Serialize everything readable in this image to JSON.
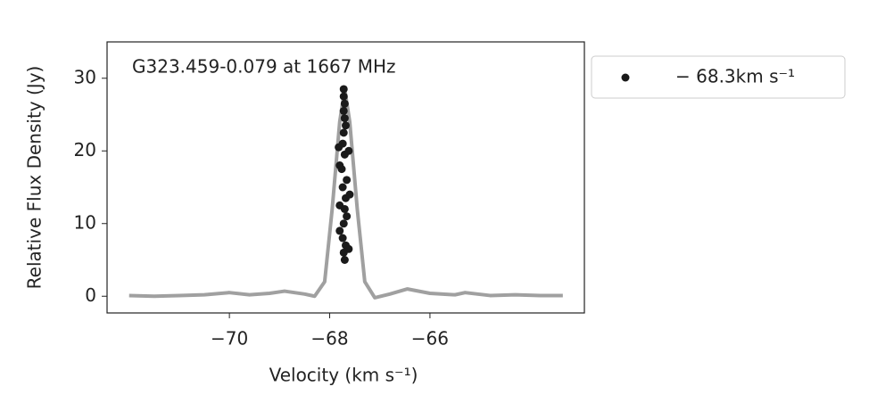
{
  "chart_data": {
    "type": "line",
    "annotation": "G323.459-0.079 at 1667 MHz",
    "xlabel": "Velocity (km s⁻¹)",
    "ylabel": "Relative Flux Density (Jy)",
    "xlim": [
      -72.44,
      -62.92
    ],
    "ylim": [
      -2.3,
      35
    ],
    "xticks": [
      {
        "value": -70,
        "label": "−70"
      },
      {
        "value": -68,
        "label": "−68"
      },
      {
        "value": -66,
        "label": "−66"
      }
    ],
    "yticks": [
      0,
      10,
      20,
      30
    ],
    "spectrum": {
      "color": "#888888",
      "x": [
        -72.0,
        -71.5,
        -71.0,
        -70.5,
        -70.0,
        -69.6,
        -69.2,
        -68.9,
        -68.5,
        -68.3,
        -68.1,
        -67.95,
        -67.8,
        -67.7,
        -67.6,
        -67.45,
        -67.3,
        -67.1,
        -66.8,
        -66.45,
        -66.0,
        -65.5,
        -65.3,
        -64.8,
        -64.3,
        -63.8,
        -63.35
      ],
      "values": [
        0.1,
        0.0,
        0.1,
        0.2,
        0.5,
        0.2,
        0.4,
        0.7,
        0.3,
        0.0,
        2,
        12,
        24,
        28.5,
        24,
        12,
        2,
        -0.2,
        0.3,
        1.0,
        0.4,
        0.2,
        0.5,
        0.1,
        0.2,
        0.1,
        0.1
      ]
    },
    "points": {
      "name": "− 68.3km s⁻¹",
      "color": "#1a1a1a",
      "x": [
        -67.72,
        -67.72,
        -67.7,
        -67.72,
        -67.7,
        -67.68,
        -67.72,
        -67.74,
        -67.82,
        -67.62,
        -67.7,
        -67.8,
        -67.76,
        -67.66,
        -67.74,
        -67.6,
        -67.68,
        -67.8,
        -67.7,
        -67.66,
        -67.72,
        -67.8,
        -67.74,
        -67.68,
        -67.62,
        -67.72,
        -67.7
      ],
      "values": [
        28.5,
        27.5,
        26.5,
        25.5,
        24.5,
        23.5,
        22.5,
        21,
        20.5,
        20,
        19.5,
        18,
        17.5,
        16,
        15,
        14,
        13.5,
        12.5,
        12,
        11,
        10,
        9,
        8,
        7,
        6.5,
        6,
        5
      ]
    }
  }
}
